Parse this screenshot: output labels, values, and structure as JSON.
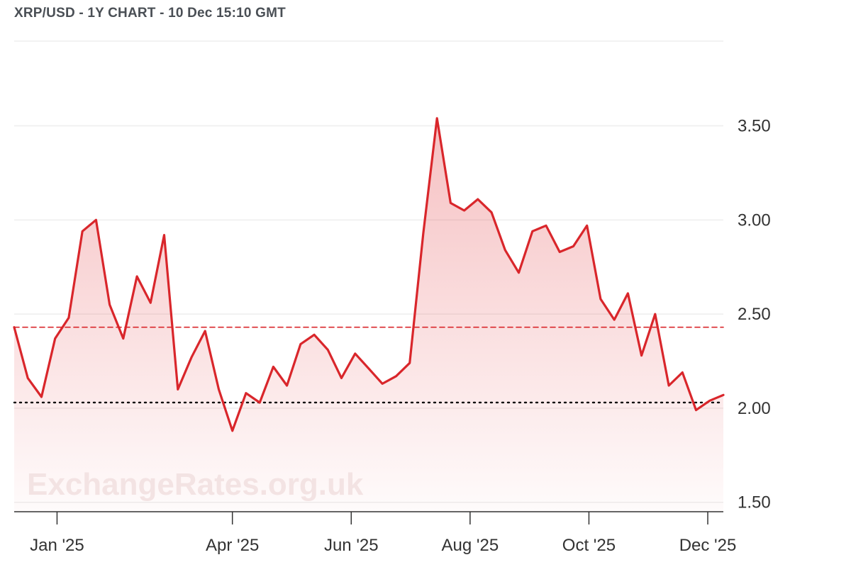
{
  "chart_data": {
    "type": "area",
    "title": "XRP/USD - 1Y CHART - 10 Dec 15:10 GMT",
    "watermark": "ExchangeRates.org.uk",
    "xlabel": "",
    "ylabel": "",
    "x_ticks": [
      "Jan '25",
      "Apr '25",
      "Jun '25",
      "Aug '25",
      "Oct '25",
      "Dec '25"
    ],
    "y_ticks": [
      "1.50",
      "2.00",
      "2.50",
      "3.00",
      "3.50"
    ],
    "ylim": [
      1.45,
      3.95
    ],
    "reference_lines": [
      {
        "label": "average",
        "value": 2.43,
        "style": "dashed",
        "color": "#d9262b"
      },
      {
        "label": "current",
        "value": 2.03,
        "style": "dotted",
        "color": "#000000"
      }
    ],
    "grid": true,
    "legend": "none",
    "colors": {
      "line": "#d9262b",
      "fill": "#d9262b"
    },
    "series": [
      {
        "x": [
          "2024-12-10",
          "2024-12-17",
          "2024-12-24",
          "2024-12-31",
          "2025-01-07",
          "2025-01-14",
          "2025-01-21",
          "2025-01-28",
          "2025-02-04",
          "2025-02-11",
          "2025-02-18",
          "2025-02-25",
          "2025-03-04",
          "2025-03-11",
          "2025-03-18",
          "2025-03-25",
          "2025-04-01",
          "2025-04-08",
          "2025-04-15",
          "2025-04-22",
          "2025-04-29",
          "2025-05-06",
          "2025-05-13",
          "2025-05-20",
          "2025-05-27",
          "2025-06-03",
          "2025-06-10",
          "2025-06-17",
          "2025-06-24",
          "2025-07-01",
          "2025-07-08",
          "2025-07-15",
          "2025-07-22",
          "2025-07-29",
          "2025-08-05",
          "2025-08-12",
          "2025-08-19",
          "2025-08-26",
          "2025-09-02",
          "2025-09-09",
          "2025-09-16",
          "2025-09-23",
          "2025-09-30",
          "2025-10-07",
          "2025-10-14",
          "2025-10-21",
          "2025-10-28",
          "2025-11-04",
          "2025-11-11",
          "2025-11-18",
          "2025-11-25",
          "2025-12-02",
          "2025-12-09"
        ],
        "values": [
          2.43,
          2.16,
          2.06,
          2.37,
          2.48,
          2.94,
          3.0,
          2.55,
          2.37,
          2.7,
          2.56,
          2.92,
          2.1,
          2.27,
          2.41,
          2.1,
          1.88,
          2.08,
          2.03,
          2.22,
          2.12,
          2.34,
          2.39,
          2.31,
          2.16,
          2.29,
          2.21,
          2.13,
          2.17,
          2.24,
          2.93,
          3.54,
          3.09,
          3.05,
          3.11,
          3.04,
          2.84,
          2.72,
          2.94,
          2.97,
          2.83,
          2.86,
          2.97,
          2.58,
          2.47,
          2.61,
          2.28,
          2.5,
          2.12,
          2.19,
          1.99,
          2.04,
          2.07
        ]
      }
    ]
  }
}
